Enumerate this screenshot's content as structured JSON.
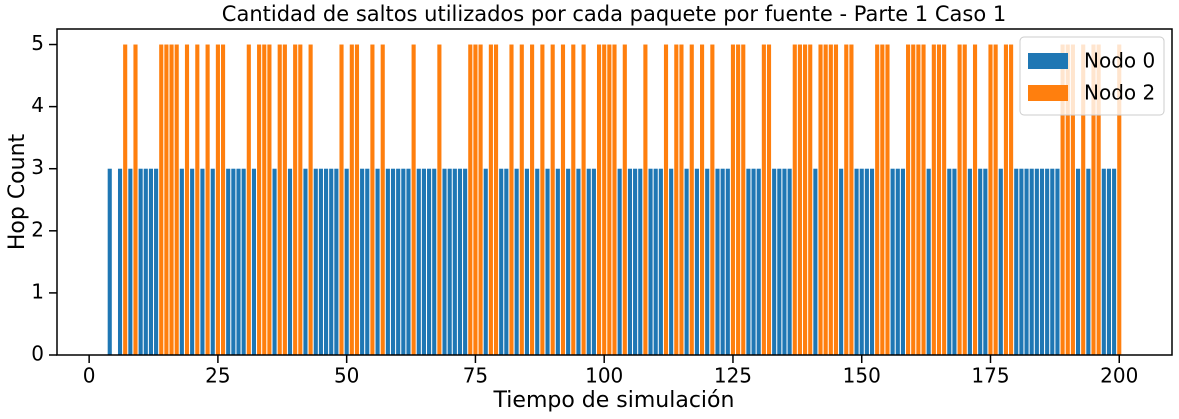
{
  "chart_data": {
    "type": "bar",
    "title": "Cantidad de saltos utilizados por cada paquete por fuente - Parte 1 Caso 1",
    "x_label": "Tiempo de simulación",
    "y_label": "Hop Count",
    "xlim": [
      -6.24,
      210.24
    ],
    "xticks": [
      0,
      25,
      50,
      75,
      100,
      125,
      150,
      175,
      200
    ],
    "ylim": [
      0,
      5.25
    ],
    "yticks": [
      0,
      1,
      2,
      3,
      4,
      5
    ],
    "legend_position": "upper right",
    "series": [
      {
        "name": "Nodo 0",
        "color": "#1f77b4",
        "x": [
          4,
          6,
          8,
          10,
          11,
          12,
          13,
          18,
          20,
          22,
          24,
          27,
          28,
          29,
          30,
          32,
          36,
          39,
          42,
          44,
          45,
          46,
          47,
          48,
          50,
          53,
          54,
          56,
          58,
          59,
          60,
          61,
          62,
          64,
          65,
          66,
          67,
          69,
          70,
          71,
          72,
          73,
          77,
          80,
          81,
          83,
          85,
          87,
          89,
          91,
          93,
          95,
          97,
          98,
          103,
          105,
          106,
          107,
          109,
          110,
          111,
          113,
          116,
          118,
          120,
          122,
          123,
          124,
          128,
          129,
          130,
          133,
          134,
          135,
          136,
          141,
          146,
          149,
          150,
          151,
          152,
          156,
          157,
          158,
          163,
          167,
          168,
          171,
          173,
          174,
          177,
          180,
          181,
          182,
          183,
          184,
          185,
          186,
          187,
          188,
          192,
          194,
          197,
          198,
          199
        ],
        "values": [
          3,
          3,
          3,
          3,
          3,
          3,
          3,
          3,
          3,
          3,
          3,
          3,
          3,
          3,
          3,
          3,
          3,
          3,
          3,
          3,
          3,
          3,
          3,
          3,
          3,
          3,
          3,
          3,
          3,
          3,
          3,
          3,
          3,
          3,
          3,
          3,
          3,
          3,
          3,
          3,
          3,
          3,
          3,
          3,
          3,
          3,
          3,
          3,
          3,
          3,
          3,
          3,
          3,
          3,
          3,
          3,
          3,
          3,
          3,
          3,
          3,
          3,
          3,
          3,
          3,
          3,
          3,
          3,
          3,
          3,
          3,
          3,
          3,
          3,
          3,
          3,
          3,
          3,
          3,
          3,
          3,
          3,
          3,
          3,
          3,
          3,
          3,
          3,
          3,
          3,
          3,
          3,
          3,
          3,
          3,
          3,
          3,
          3,
          3,
          3,
          3,
          3,
          3,
          3,
          3
        ]
      },
      {
        "name": "Nodo 2",
        "color": "#ff7f0e",
        "x": [
          7,
          9,
          14,
          15,
          16,
          17,
          19,
          21,
          23,
          25,
          26,
          31,
          33,
          34,
          35,
          37,
          38,
          40,
          41,
          43,
          49,
          51,
          52,
          55,
          57,
          63,
          68,
          74,
          75,
          76,
          78,
          79,
          82,
          84,
          86,
          88,
          90,
          92,
          94,
          96,
          99,
          100,
          101,
          102,
          104,
          108,
          112,
          114,
          115,
          117,
          119,
          121,
          125,
          126,
          127,
          131,
          132,
          137,
          138,
          139,
          140,
          142,
          143,
          144,
          145,
          147,
          148,
          153,
          154,
          155,
          159,
          160,
          161,
          162,
          164,
          165,
          166,
          169,
          170,
          172,
          175,
          176,
          178,
          179,
          189,
          190,
          191,
          193,
          195,
          196,
          200
        ],
        "values": [
          5,
          5,
          5,
          5,
          5,
          5,
          5,
          5,
          5,
          5,
          5,
          5,
          5,
          5,
          5,
          5,
          5,
          5,
          5,
          5,
          5,
          5,
          5,
          5,
          5,
          5,
          5,
          5,
          5,
          5,
          5,
          5,
          5,
          5,
          5,
          5,
          5,
          5,
          5,
          5,
          5,
          5,
          5,
          5,
          5,
          5,
          5,
          5,
          5,
          5,
          5,
          5,
          5,
          5,
          5,
          5,
          5,
          5,
          5,
          5,
          5,
          5,
          5,
          5,
          5,
          5,
          5,
          5,
          5,
          5,
          5,
          5,
          5,
          5,
          5,
          5,
          5,
          5,
          5,
          5,
          5,
          5,
          5,
          5,
          5,
          5,
          5,
          5,
          5,
          5,
          5
        ]
      }
    ]
  }
}
